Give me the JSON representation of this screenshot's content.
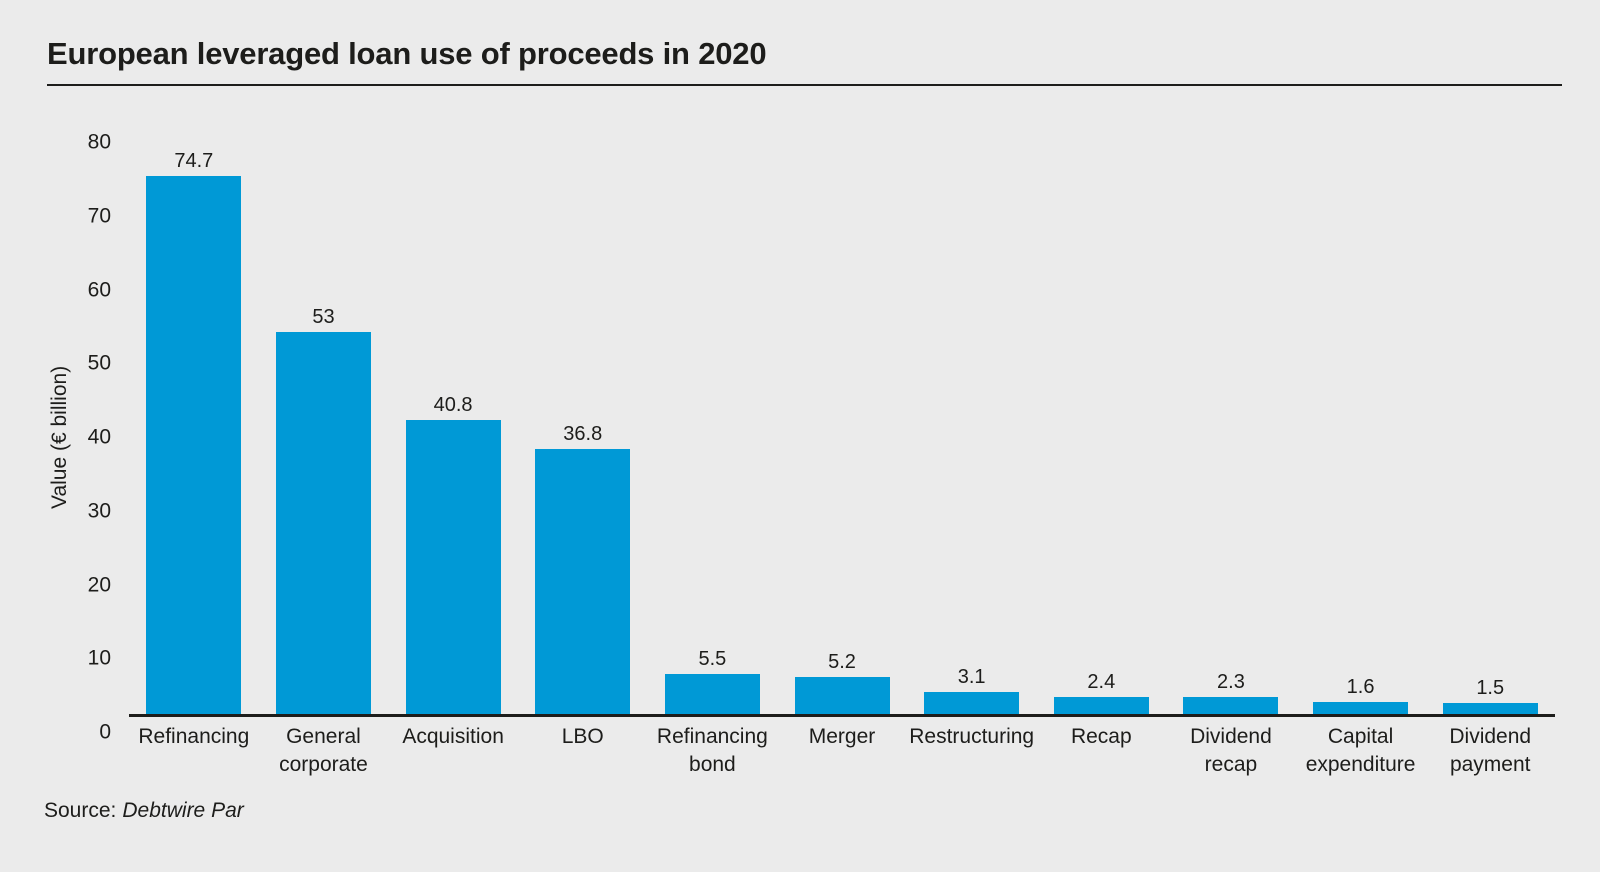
{
  "page": {
    "title": "European leveraged loan use of proceeds in 2020",
    "source_prefix": "Source:",
    "source_name": "Debtwire Par"
  },
  "chart_data": {
    "type": "bar",
    "title": "European leveraged loan use of proceeds in 2020",
    "categories": [
      "Refinancing",
      "General corporate",
      "Acquisition",
      "LBO",
      "Refinancing bond",
      "Merger",
      "Restructuring",
      "Recap",
      "Dividend recap",
      "Capital expenditure",
      "Dividend payment"
    ],
    "values": [
      74.7,
      53,
      40.8,
      36.8,
      5.5,
      5.2,
      3.1,
      2.4,
      2.3,
      1.6,
      1.5
    ],
    "value_labels": [
      "74.7",
      "53",
      "40.8",
      "36.8",
      "5.5",
      "5.2",
      "3.1",
      "2.4",
      "2.3",
      "1.6",
      "1.5"
    ],
    "xlabel": "",
    "ylabel": "Value (€ billion)",
    "ylim": [
      0,
      80
    ],
    "yticks": [
      0,
      10,
      20,
      30,
      40,
      50,
      60,
      70,
      80
    ],
    "grid": false,
    "legend": false,
    "bar_color": "#0099d6",
    "colors": {
      "background": "#ebebeb",
      "text": "#1d1d1b",
      "axis": "#1d1d1b"
    },
    "source": "Debtwire Par"
  }
}
